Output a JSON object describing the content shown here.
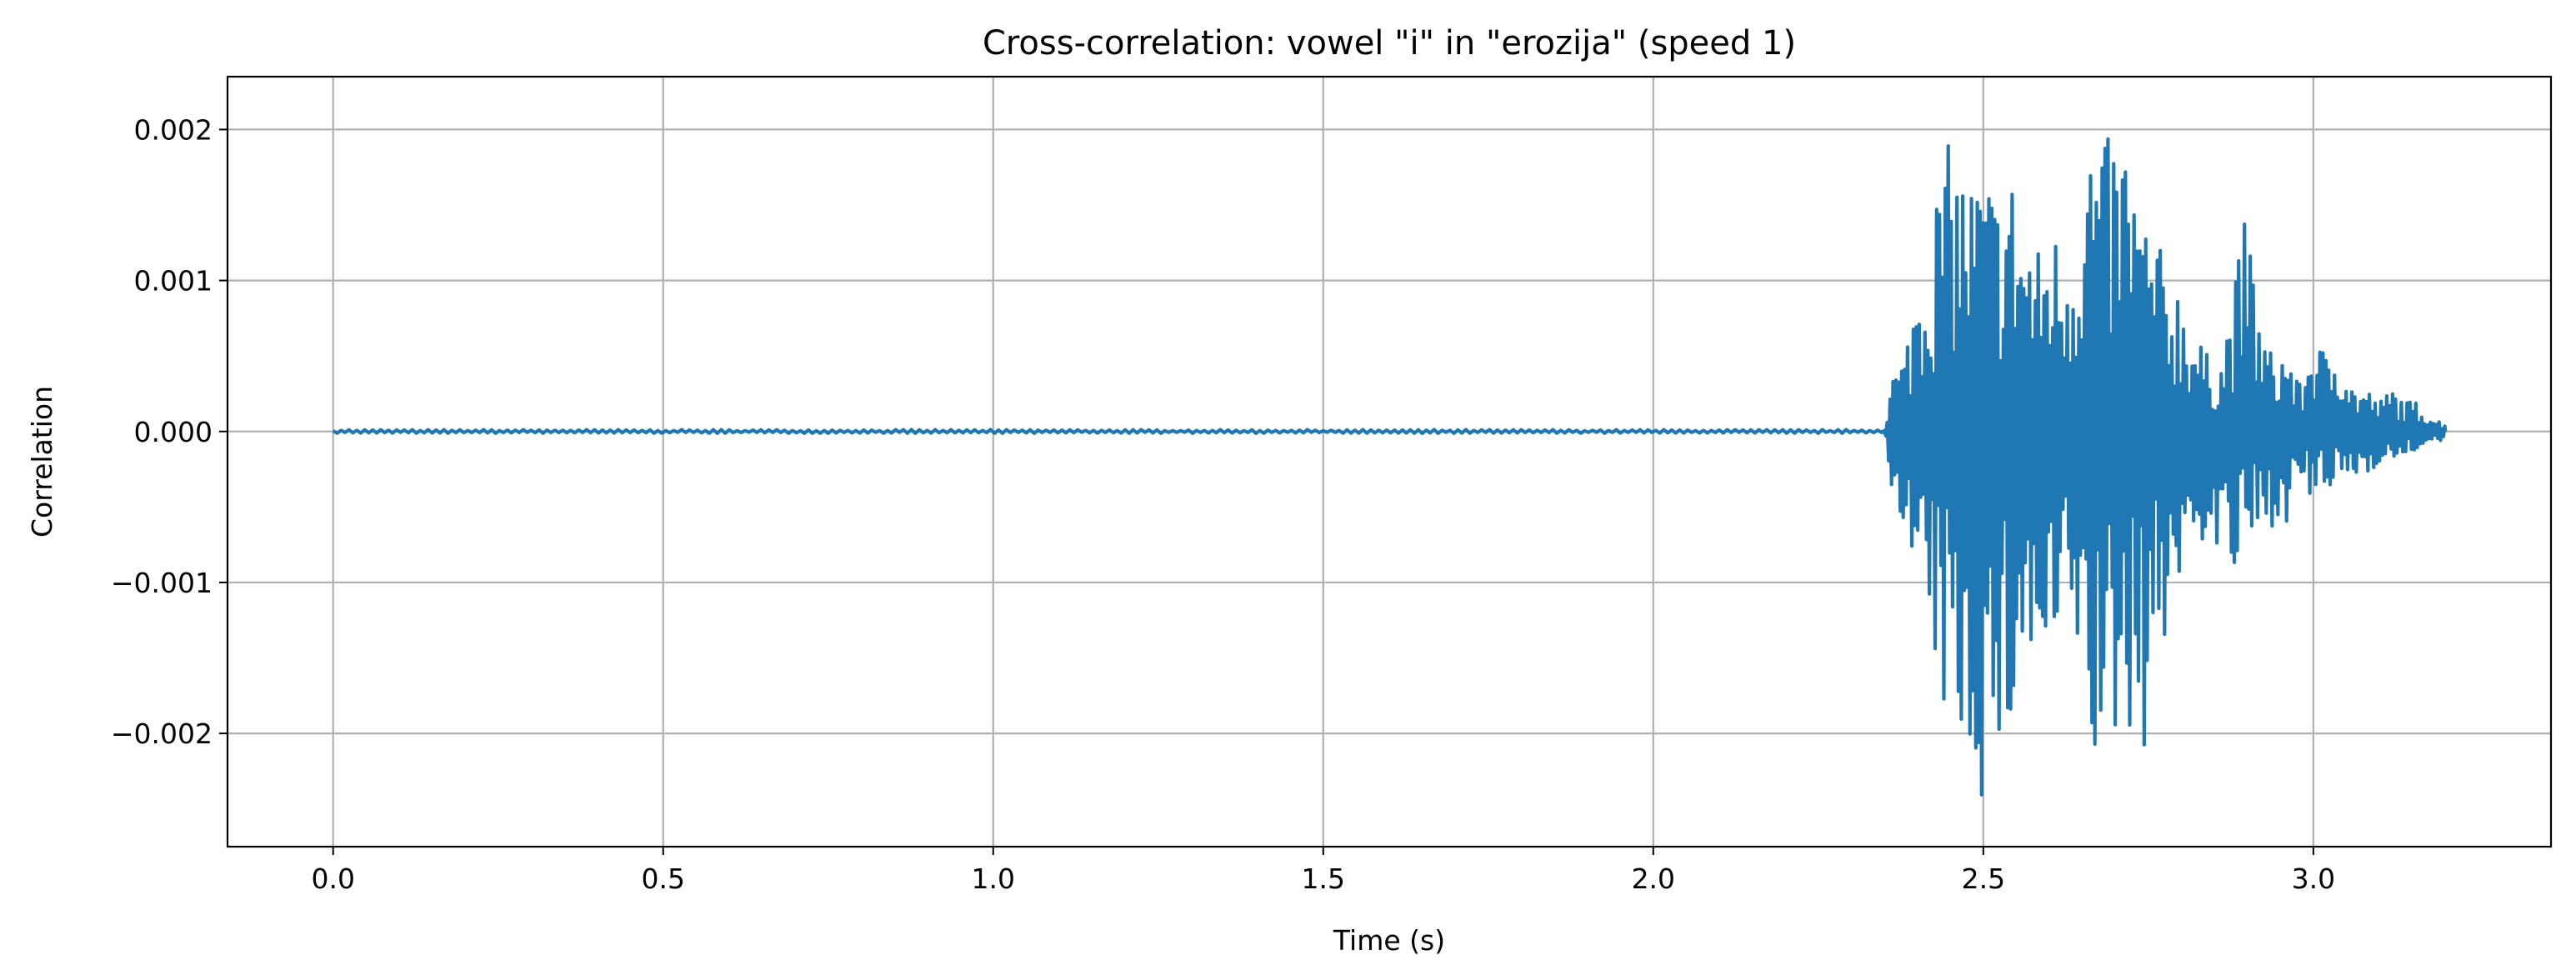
{
  "chart_data": {
    "type": "line",
    "title": "Cross-correlation: vowel \"i\" in \"erozija\" (speed 1)",
    "xlabel": "Time (s)",
    "ylabel": "Correlation",
    "xlim": [
      -0.16,
      3.36
    ],
    "ylim": [
      -0.00275,
      0.00235
    ],
    "x_ticks": [
      0.0,
      0.5,
      1.0,
      1.5,
      2.0,
      2.5,
      3.0
    ],
    "x_tick_labels": [
      "0.0",
      "0.5",
      "1.0",
      "1.5",
      "2.0",
      "2.5",
      "3.0"
    ],
    "y_ticks": [
      -0.002,
      -0.001,
      0.0,
      0.001,
      0.002
    ],
    "y_tick_labels": [
      "−0.002",
      "−0.001",
      "0.000",
      "0.001",
      "0.002"
    ],
    "grid": true,
    "line_color": "#1f77b4",
    "series": [
      {
        "x": [
          0.0,
          2.35,
          2.36,
          2.38,
          2.4,
          2.42,
          2.44,
          2.46,
          2.48,
          2.5,
          2.52,
          2.54,
          2.56,
          2.58,
          2.6,
          2.62,
          2.64,
          2.66,
          2.68,
          2.7,
          2.72,
          2.74,
          2.76,
          2.78,
          2.8,
          2.82,
          2.84,
          2.86,
          2.88,
          2.9,
          2.92,
          2.94,
          2.96,
          2.98,
          3.0,
          3.02,
          3.04,
          3.06,
          3.08,
          3.1,
          3.12,
          3.14,
          3.16,
          3.18,
          3.2
        ],
        "envelope_upper": [
          1e-05,
          2e-05,
          0.0004,
          0.0005,
          0.0011,
          0.0014,
          0.0019,
          0.0019,
          0.0017,
          0.0018,
          0.0016,
          0.0018,
          0.0015,
          0.0012,
          0.0014,
          0.0013,
          0.0015,
          0.0021,
          0.0019,
          0.002,
          0.002,
          0.0015,
          0.0013,
          0.0011,
          0.001,
          0.0007,
          0.0005,
          0.0005,
          0.001,
          0.0015,
          0.0007,
          0.0005,
          0.0006,
          0.0003,
          0.0007,
          0.0005,
          0.0007,
          0.0003,
          0.0003,
          0.0002,
          0.0003,
          0.0002,
          0.0002,
          0.0001,
          5e-05
        ],
        "envelope_lower": [
          -1e-05,
          -2e-05,
          -0.0004,
          -0.0006,
          -0.0012,
          -0.0015,
          -0.0019,
          -0.0021,
          -0.0022,
          -0.0025,
          -0.0023,
          -0.0021,
          -0.0016,
          -0.0017,
          -0.0018,
          -0.0015,
          -0.0014,
          -0.0023,
          -0.0023,
          -0.0021,
          -0.002,
          -0.0022,
          -0.0017,
          -0.0013,
          -0.001,
          -0.0008,
          -0.0007,
          -0.0009,
          -0.001,
          -0.0008,
          -0.0008,
          -0.0006,
          -0.0006,
          -0.0004,
          -0.0005,
          -0.0004,
          -0.0004,
          -0.0003,
          -0.0003,
          -0.0002,
          -0.0002,
          -0.0002,
          -0.0001,
          -0.0001,
          -5e-05
        ]
      }
    ]
  }
}
